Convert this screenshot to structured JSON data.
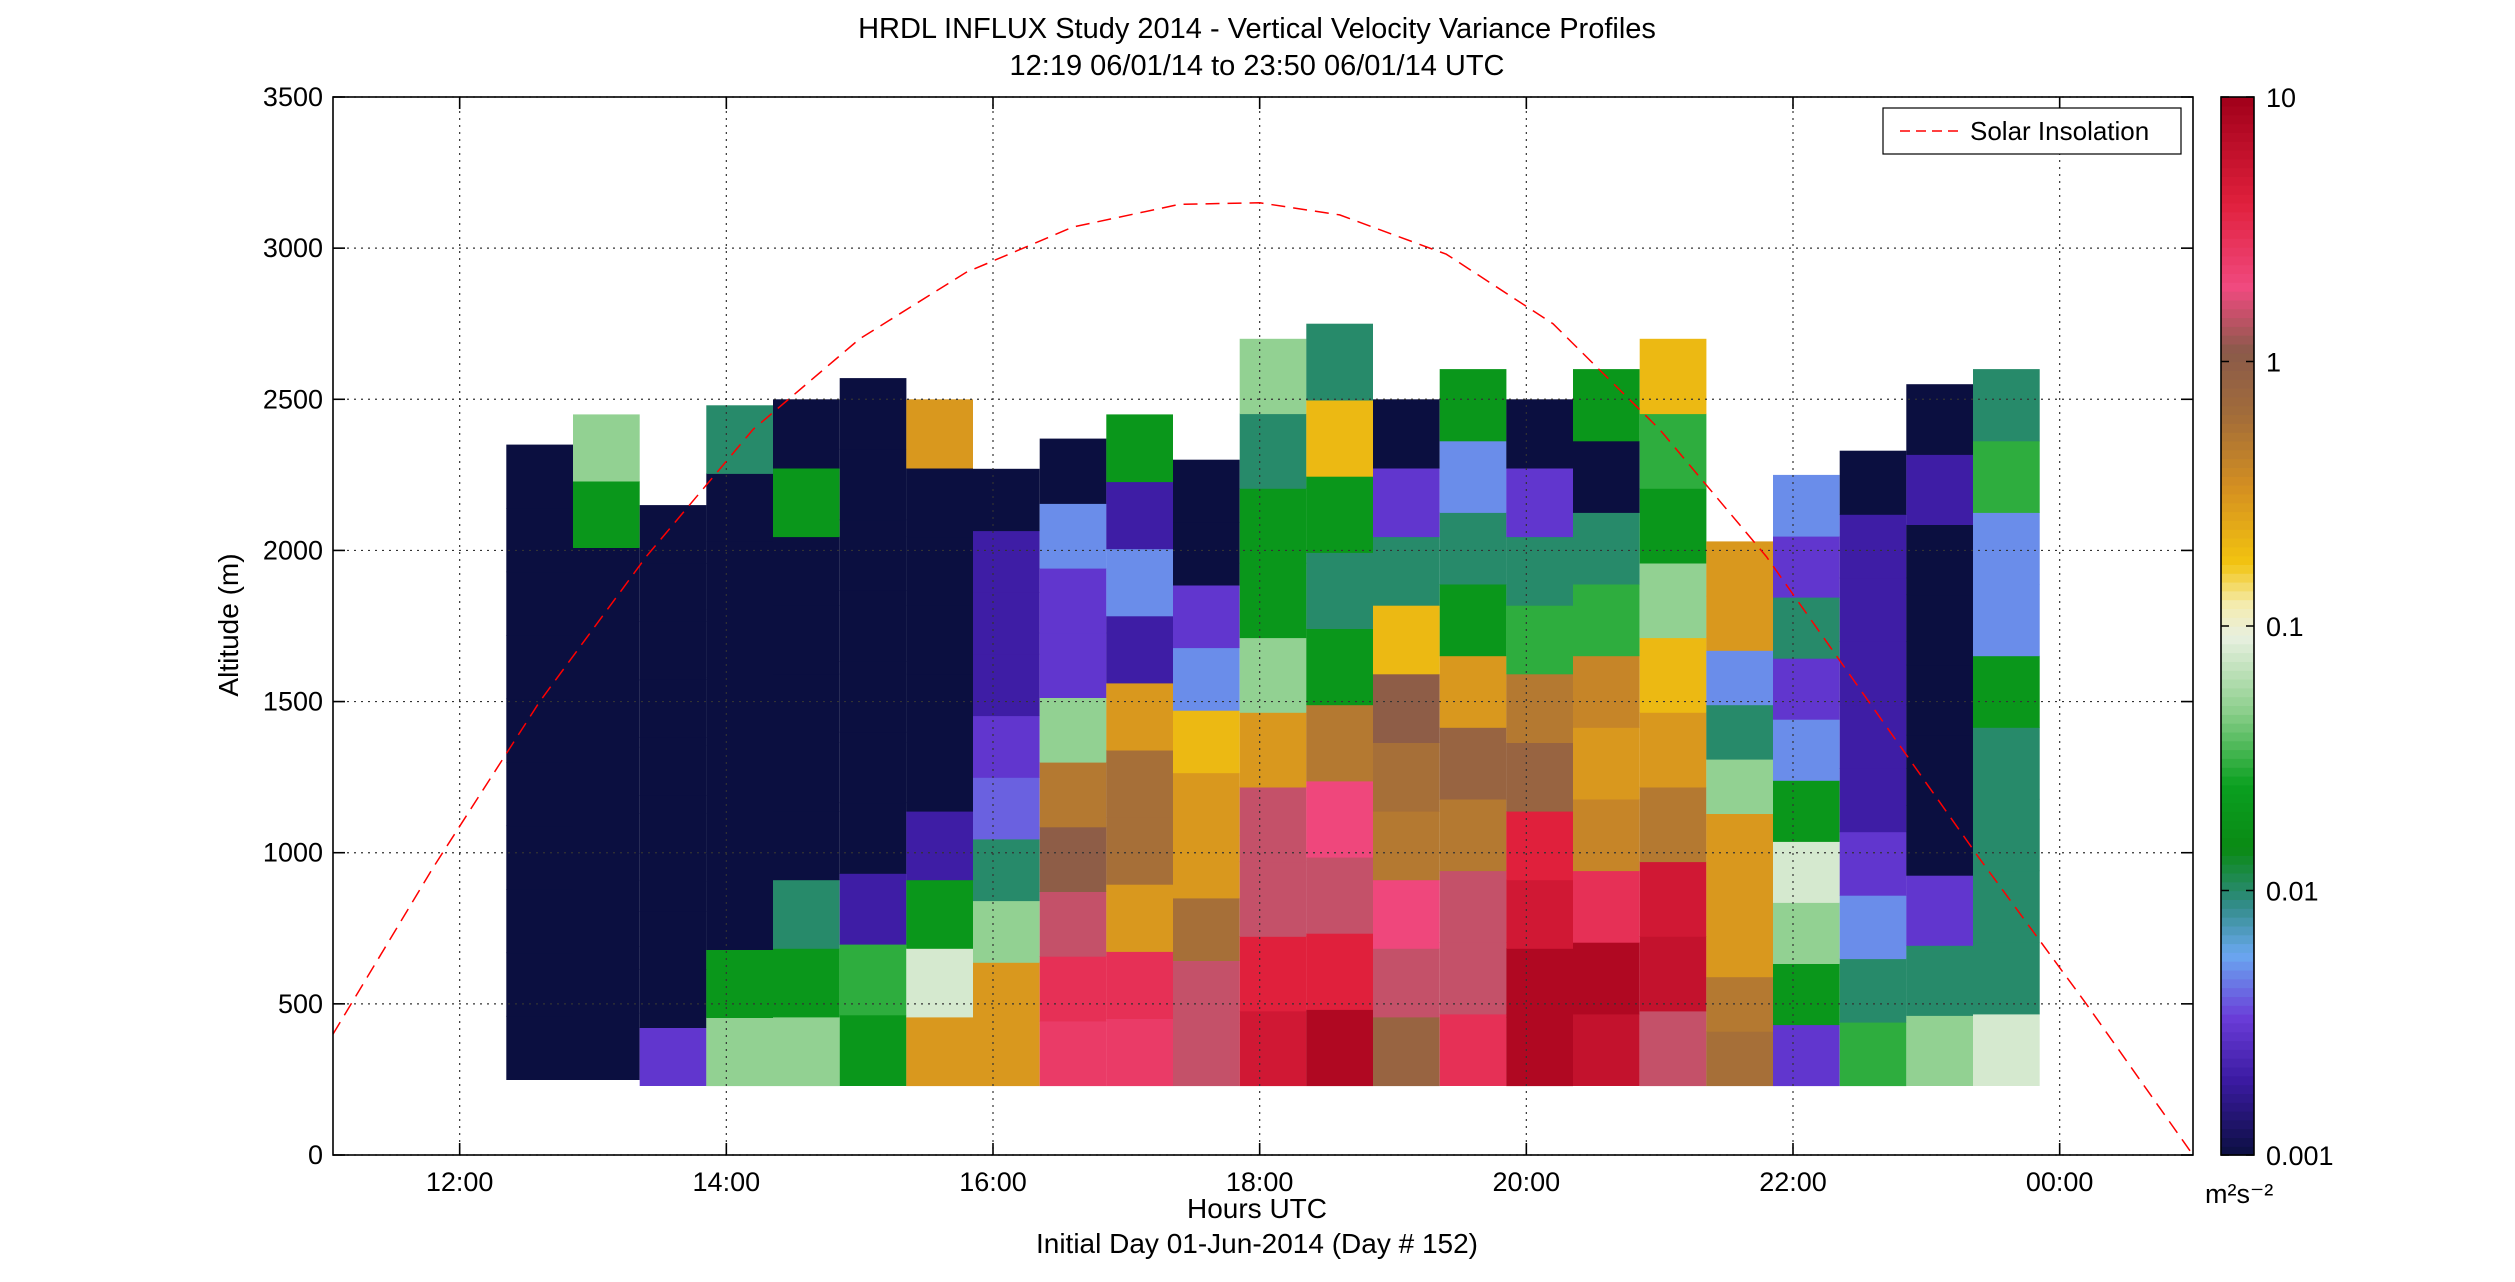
{
  "chart_data": {
    "type": "heatmap",
    "title_line1": "HRDL INFLUX Study 2014 - Vertical Velocity Variance Profiles",
    "title_line2": "12:19 06/01/14 to 23:50 06/01/14  UTC",
    "xlabel": "Hours UTC",
    "xlabel_sub": "Initial Day 01-Jun-2014 (Day # 152)",
    "ylabel": "Altitude (m)",
    "x_ticks": [
      "12:00",
      "14:00",
      "16:00",
      "18:00",
      "20:00",
      "22:00",
      "00:00"
    ],
    "x_tick_hours": [
      12,
      14,
      16,
      18,
      20,
      22,
      24
    ],
    "xlim_hours": [
      11.05,
      25.0
    ],
    "y_ticks": [
      "0",
      "500",
      "1000",
      "1500",
      "2000",
      "2500",
      "3000",
      "3500"
    ],
    "ylim": [
      0,
      3500
    ],
    "grid": true,
    "colorbar": {
      "scale": "log",
      "ticks": [
        "10",
        "1",
        "0.1",
        "0.01",
        "0.001"
      ],
      "unit": "m²s⁻²",
      "range": [
        0.001,
        10
      ]
    },
    "legend": {
      "placement": "top-right",
      "entries": [
        {
          "name": "Solar Insolation",
          "style": "dashed",
          "color": "#ff0000"
        }
      ]
    },
    "profiles": [
      {
        "time_hours": 12.6,
        "bottom_m": 250,
        "top_m": 2350,
        "variance_m2s2": [
          0.001,
          0.001,
          0.001,
          0.001,
          0.001,
          0.001,
          0.001,
          0.001,
          0.001,
          0.001
        ]
      },
      {
        "time_hours": 13.1,
        "bottom_m": 250,
        "top_m": 2450,
        "variance_m2s2": [
          0.001,
          0.001,
          0.001,
          0.001,
          0.001,
          0.001,
          0.001,
          0.001,
          0.02,
          0.05
        ]
      },
      {
        "time_hours": 13.6,
        "bottom_m": 230,
        "top_m": 2150,
        "variance_m2s2": [
          0.003,
          0.001,
          0.001,
          0.001,
          0.001,
          0.001,
          0.001,
          0.001,
          0.001,
          0.001
        ]
      },
      {
        "time_hours": 14.1,
        "bottom_m": 230,
        "top_m": 2480,
        "variance_m2s2": [
          0.05,
          0.02,
          0.001,
          0.001,
          0.001,
          0.001,
          0.001,
          0.001,
          0.001,
          0.01
        ]
      },
      {
        "time_hours": 14.6,
        "bottom_m": 230,
        "top_m": 2500,
        "variance_m2s2": [
          0.05,
          0.02,
          0.01,
          0.001,
          0.001,
          0.001,
          0.001,
          0.001,
          0.02,
          0.001
        ]
      },
      {
        "time_hours": 15.1,
        "bottom_m": 230,
        "top_m": 2570,
        "variance_m2s2": [
          0.02,
          0.03,
          0.002,
          0.001,
          0.001,
          0.001,
          0.001,
          0.001,
          0.001,
          0.001
        ]
      },
      {
        "time_hours": 15.6,
        "bottom_m": 230,
        "top_m": 2500,
        "variance_m2s2": [
          0.3,
          0.08,
          0.02,
          0.002,
          0.001,
          0.001,
          0.001,
          0.001,
          0.001,
          0.3
        ]
      },
      {
        "time_hours": 16.1,
        "bottom_m": 230,
        "top_m": 2270,
        "variance_m2s2": [
          0.3,
          0.3,
          0.05,
          0.01,
          0.004,
          0.003,
          0.002,
          0.002,
          0.002,
          0.001
        ]
      },
      {
        "time_hours": 16.6,
        "bottom_m": 230,
        "top_m": 2370,
        "variance_m2s2": [
          2.5,
          3.0,
          1.5,
          1.0,
          0.5,
          0.05,
          0.003,
          0.003,
          0.005,
          0.001
        ]
      },
      {
        "time_hours": 17.1,
        "bottom_m": 230,
        "top_m": 2450,
        "variance_m2s2": [
          2.5,
          3.0,
          0.3,
          0.6,
          0.6,
          0.3,
          0.002,
          0.005,
          0.002,
          0.02
        ]
      },
      {
        "time_hours": 17.6,
        "bottom_m": 230,
        "top_m": 2300,
        "variance_m2s2": [
          1.5,
          1.5,
          0.6,
          0.3,
          0.3,
          0.2,
          0.005,
          0.003,
          0.001,
          0.001
        ]
      },
      {
        "time_hours": 18.1,
        "bottom_m": 230,
        "top_m": 2700,
        "variance_m2s2": [
          5.0,
          4.0,
          1.5,
          1.5,
          0.3,
          0.05,
          0.02,
          0.02,
          0.01,
          0.05
        ]
      },
      {
        "time_hours": 18.6,
        "bottom_m": 230,
        "top_m": 2750,
        "variance_m2s2": [
          8.0,
          4.0,
          1.5,
          2.0,
          0.5,
          0.02,
          0.01,
          0.02,
          0.2,
          0.01
        ]
      },
      {
        "time_hours": 19.1,
        "bottom_m": 230,
        "top_m": 2500,
        "variance_m2s2": [
          0.8,
          1.5,
          2.0,
          0.5,
          0.6,
          1.0,
          0.2,
          0.01,
          0.003,
          0.001
        ]
      },
      {
        "time_hours": 19.6,
        "bottom_m": 230,
        "top_m": 2600,
        "variance_m2s2": [
          3.0,
          1.5,
          1.5,
          0.5,
          0.8,
          0.3,
          0.02,
          0.01,
          0.005,
          0.02
        ]
      },
      {
        "time_hours": 20.1,
        "bottom_m": 230,
        "top_m": 2500,
        "variance_m2s2": [
          8.0,
          8.0,
          5.0,
          4.0,
          0.8,
          0.5,
          0.03,
          0.01,
          0.003,
          0.001
        ]
      },
      {
        "time_hours": 20.6,
        "bottom_m": 230,
        "top_m": 2600,
        "variance_m2s2": [
          6.0,
          8.0,
          3.0,
          0.4,
          0.3,
          0.4,
          0.03,
          0.01,
          0.001,
          0.02
        ]
      },
      {
        "time_hours": 21.1,
        "bottom_m": 230,
        "top_m": 2700,
        "variance_m2s2": [
          1.5,
          6.0,
          5.0,
          0.5,
          0.3,
          0.2,
          0.05,
          0.02,
          0.03,
          0.2
        ]
      },
      {
        "time_hours": 21.6,
        "bottom_m": 230,
        "top_m": 2030,
        "variance_m2s2": [
          0.6,
          0.5,
          0.3,
          0.3,
          0.3,
          0.05,
          0.01,
          0.005,
          0.3,
          0.3
        ]
      },
      {
        "time_hours": 22.1,
        "bottom_m": 230,
        "top_m": 2250,
        "variance_m2s2": [
          0.003,
          0.02,
          0.05,
          0.08,
          0.02,
          0.005,
          0.003,
          0.01,
          0.003,
          0.005
        ]
      },
      {
        "time_hours": 22.6,
        "bottom_m": 230,
        "top_m": 2330,
        "variance_m2s2": [
          0.03,
          0.01,
          0.005,
          0.003,
          0.002,
          0.002,
          0.002,
          0.002,
          0.002,
          0.001
        ]
      },
      {
        "time_hours": 23.1,
        "bottom_m": 230,
        "top_m": 2550,
        "variance_m2s2": [
          0.05,
          0.01,
          0.003,
          0.001,
          0.001,
          0.001,
          0.001,
          0.001,
          0.002,
          0.001
        ]
      },
      {
        "time_hours": 23.6,
        "bottom_m": 230,
        "top_m": 2600,
        "variance_m2s2": [
          0.08,
          0.01,
          0.01,
          0.01,
          0.01,
          0.02,
          0.005,
          0.005,
          0.03,
          0.01
        ]
      }
    ],
    "solar_insolation_curve": {
      "x_hours": [
        11.05,
        11.8,
        12.6,
        13.4,
        14.2,
        15.0,
        15.8,
        16.6,
        17.4,
        18.0,
        18.6,
        19.4,
        20.2,
        21.0,
        21.8,
        22.6,
        23.4,
        24.2,
        25.0
      ],
      "y_m": [
        400,
        950,
        1500,
        1980,
        2400,
        2700,
        2920,
        3070,
        3145,
        3150,
        3110,
        2980,
        2750,
        2400,
        1980,
        1480,
        980,
        500,
        0
      ]
    }
  }
}
